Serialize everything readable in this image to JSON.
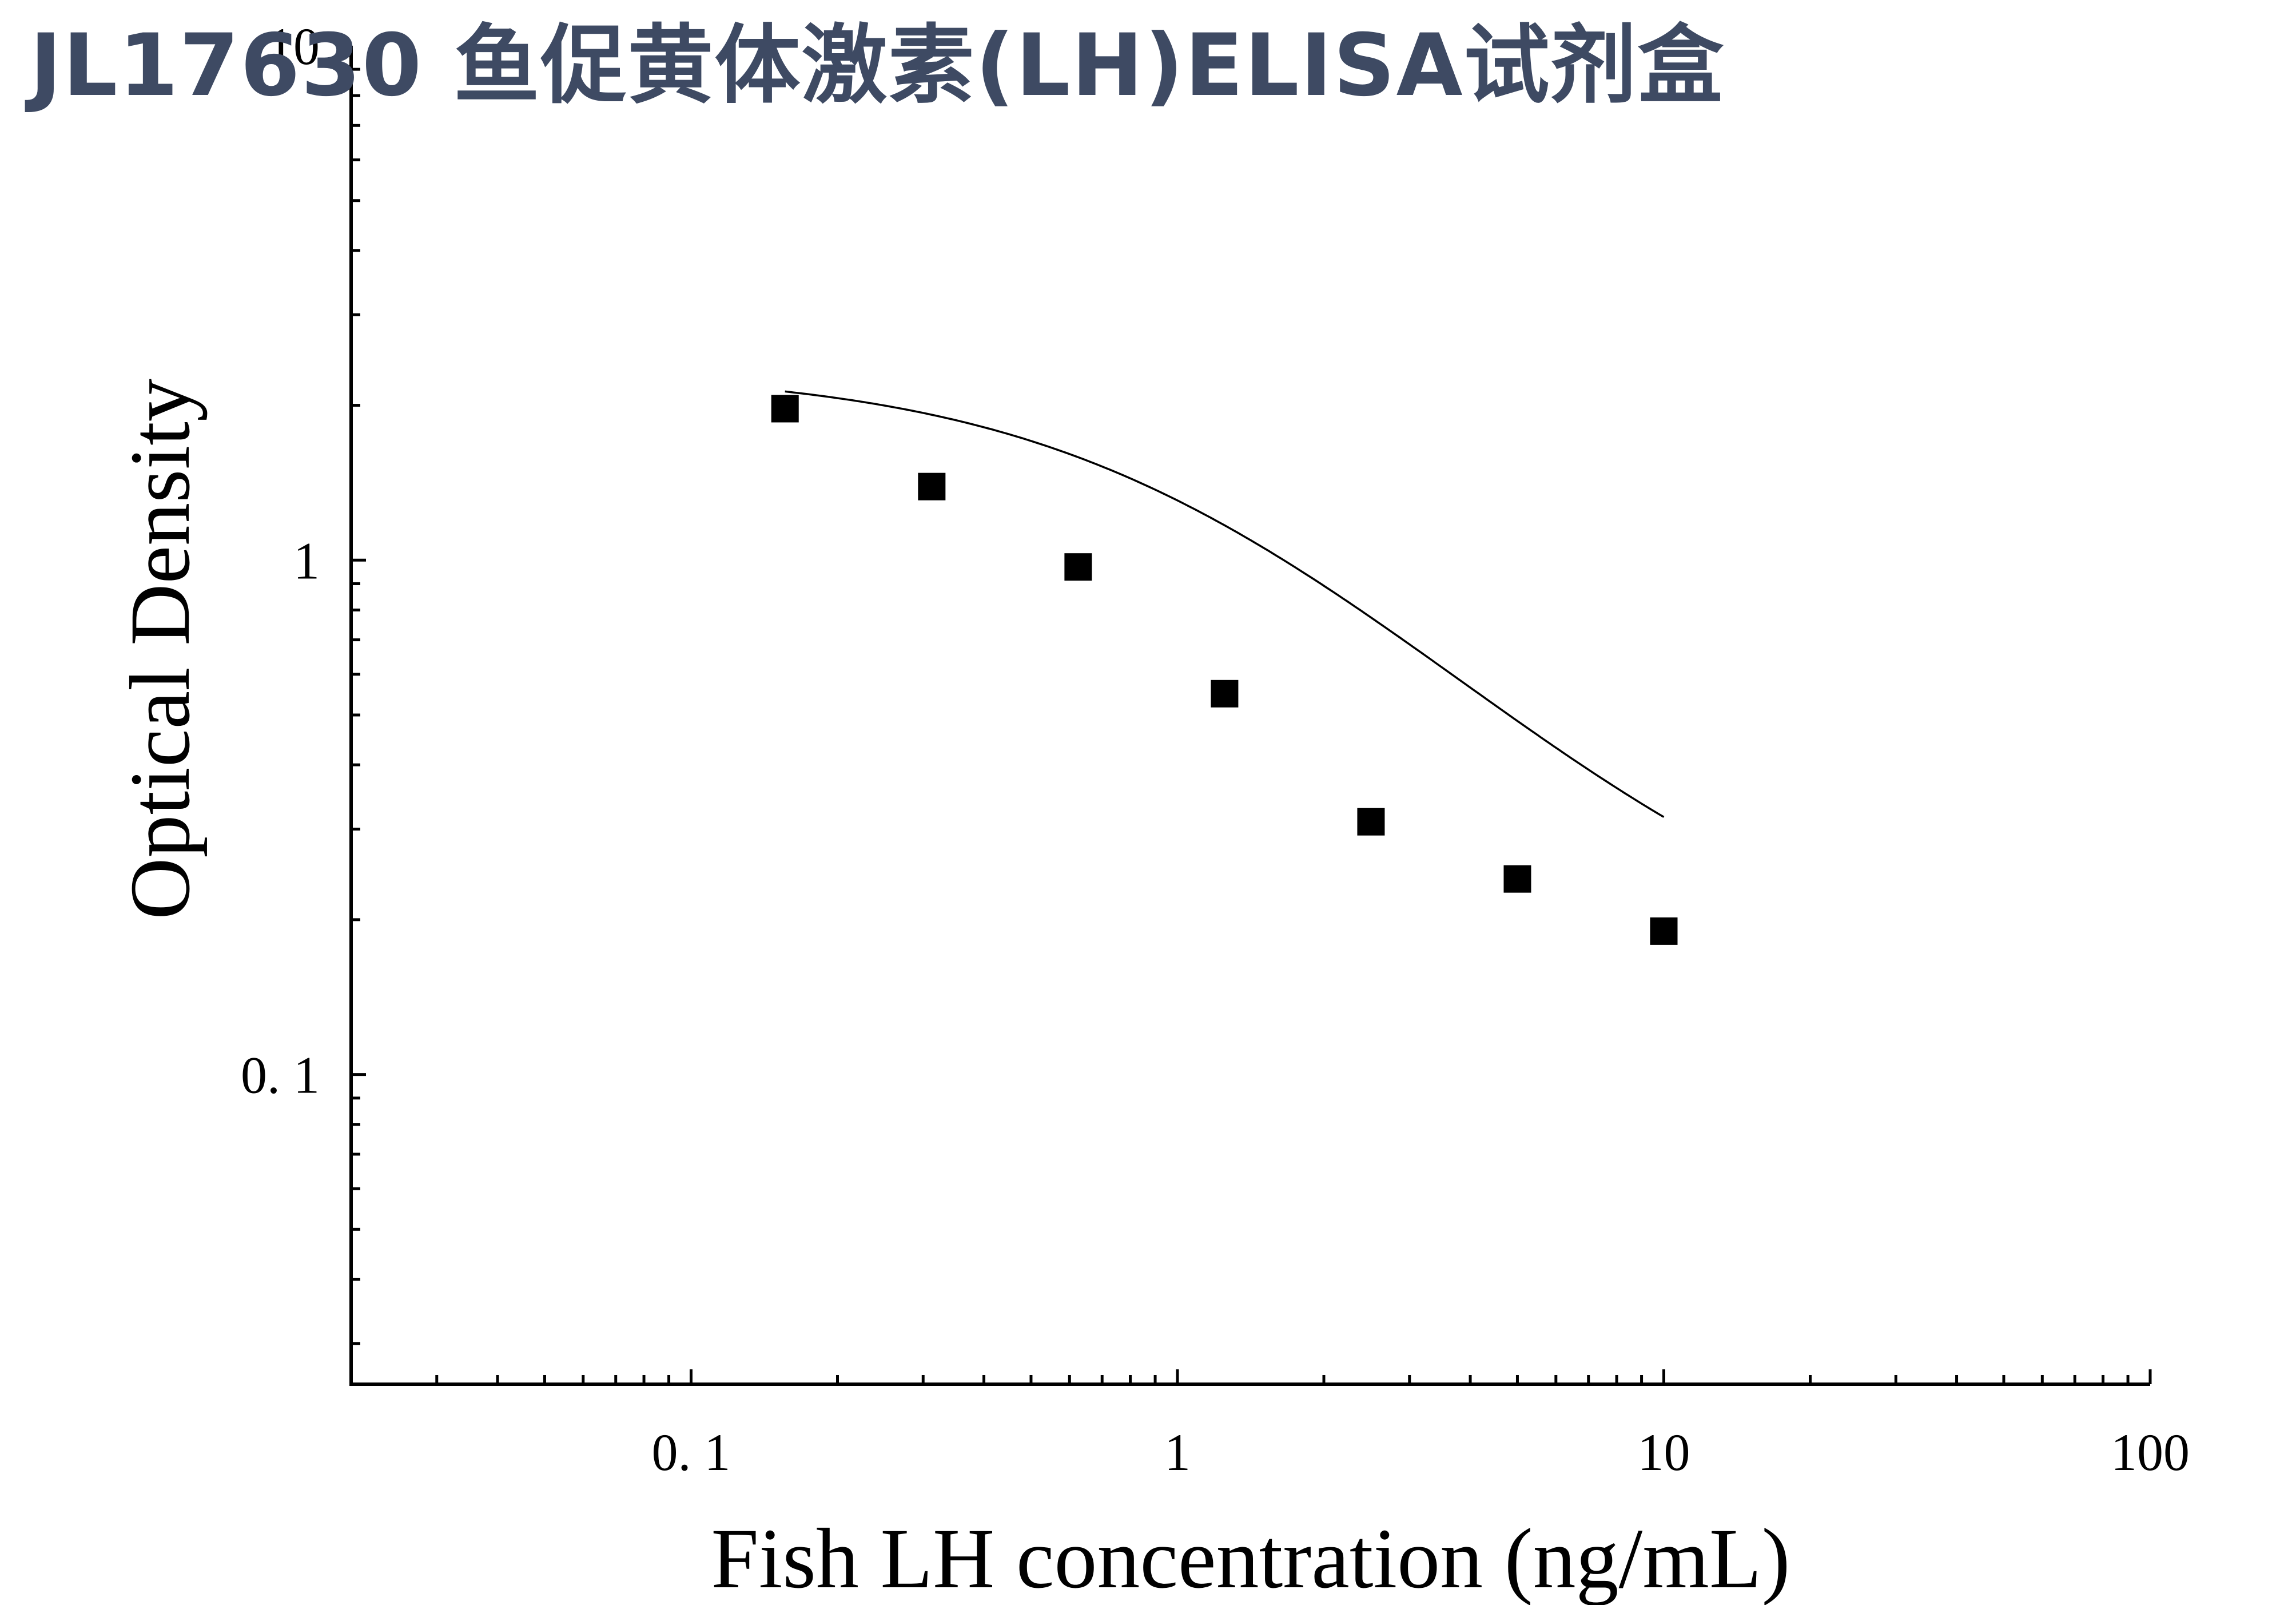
{
  "title": "JL17630 鱼促黄体激素(LH)ELISA试剂盒",
  "chart_data": {
    "type": "scatter",
    "xlabel": "Fish LH concentration (ng/mL)",
    "ylabel": "Optical Density",
    "x_scale": "log",
    "y_scale": "log",
    "xlim": [
      0.02,
      100
    ],
    "ylim": [
      0.025,
      10
    ],
    "x_tick_labels": [
      {
        "value": 0.1,
        "label": "0. 1"
      },
      {
        "value": 1,
        "label": "1"
      },
      {
        "value": 10,
        "label": "10"
      },
      {
        "value": 100,
        "label": "100"
      }
    ],
    "y_tick_labels": [
      {
        "value": 0.1,
        "label": "0. 1"
      },
      {
        "value": 1,
        "label": "1"
      },
      {
        "value": 10,
        "label": "10"
      }
    ],
    "series": [
      {
        "points": [
          {
            "x": 0.156,
            "y": 1.97
          },
          {
            "x": 0.3125,
            "y": 1.39
          },
          {
            "x": 0.625,
            "y": 0.97
          },
          {
            "x": 1.25,
            "y": 0.55
          },
          {
            "x": 2.5,
            "y": 0.31
          },
          {
            "x": 5,
            "y": 0.24
          },
          {
            "x": 10,
            "y": 0.19
          }
        ],
        "marker": "square",
        "color": "#000000"
      }
    ],
    "fit_curve": {
      "type": "4PL",
      "a": 2.35,
      "b": 1.12,
      "c": 1.1,
      "d": 0.145,
      "x_range": [
        0.156,
        10
      ]
    },
    "grid": false,
    "legend": false
  }
}
